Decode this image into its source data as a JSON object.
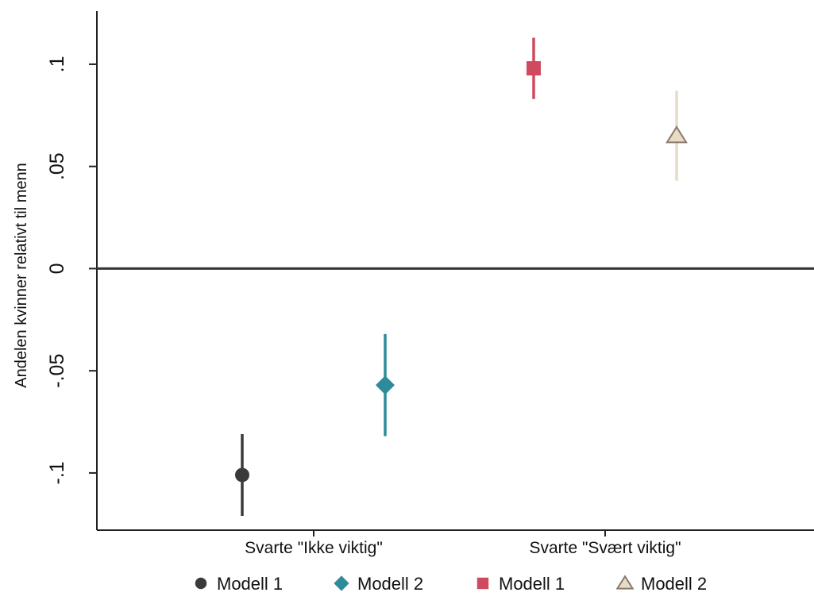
{
  "chart_data": {
    "type": "scatter",
    "subtype": "coefficient-plot",
    "title": "",
    "xlabel": "",
    "ylabel": "Andelen kvinner relativt til menn",
    "ylim": [
      -0.128,
      0.126
    ],
    "yticks": [
      {
        "value": 0.1,
        "label": ".1"
      },
      {
        "value": 0.05,
        "label": ".05"
      },
      {
        "value": 0,
        "label": "0"
      },
      {
        "value": -0.05,
        "label": "-.05"
      },
      {
        "value": -0.1,
        "label": "-.1"
      }
    ],
    "categories": [
      "Svarte \"Ikke viktig\"",
      "Svarte \"Svært viktig\""
    ],
    "zero_line": true,
    "grid": false,
    "legend_position": "bottom",
    "series": [
      {
        "name": "Modell 1",
        "marker": "circle",
        "color": "#3a3a3a",
        "category": 0,
        "offset": -0.5,
        "estimate": -0.101,
        "ci": [
          -0.121,
          -0.081
        ]
      },
      {
        "name": "Modell 2",
        "marker": "diamond",
        "color": "#2e8b9a",
        "category": 0,
        "offset": 0.5,
        "estimate": -0.057,
        "ci": [
          -0.082,
          -0.032
        ]
      },
      {
        "name": "Modell 1",
        "marker": "square",
        "color": "#cf4a5e",
        "category": 1,
        "offset": -0.5,
        "estimate": 0.098,
        "ci": [
          0.083,
          0.113
        ]
      },
      {
        "name": "Modell 2",
        "marker": "triangle",
        "color": "#e7dcc8",
        "stroke": "#8a7a6a",
        "category": 1,
        "offset": 0.5,
        "estimate": 0.065,
        "ci": [
          0.043,
          0.087
        ]
      }
    ]
  }
}
